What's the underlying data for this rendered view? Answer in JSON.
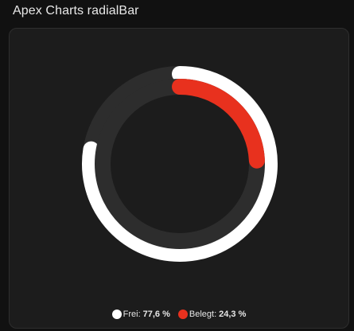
{
  "header": {
    "title": "Apex Charts radialBar"
  },
  "colors": {
    "track": "#2d2d2d",
    "hole": "#1c1c1c"
  },
  "chart_data": {
    "type": "radialBar",
    "unit": "%",
    "max": 100,
    "series": [
      {
        "name": "Frei",
        "value": 77.6,
        "display": "77,6 %",
        "color": "#ffffff"
      },
      {
        "name": "Belegt",
        "value": 24.3,
        "display": "24,3 %",
        "color": "#e8311e"
      }
    ],
    "legend_position": "bottom"
  }
}
